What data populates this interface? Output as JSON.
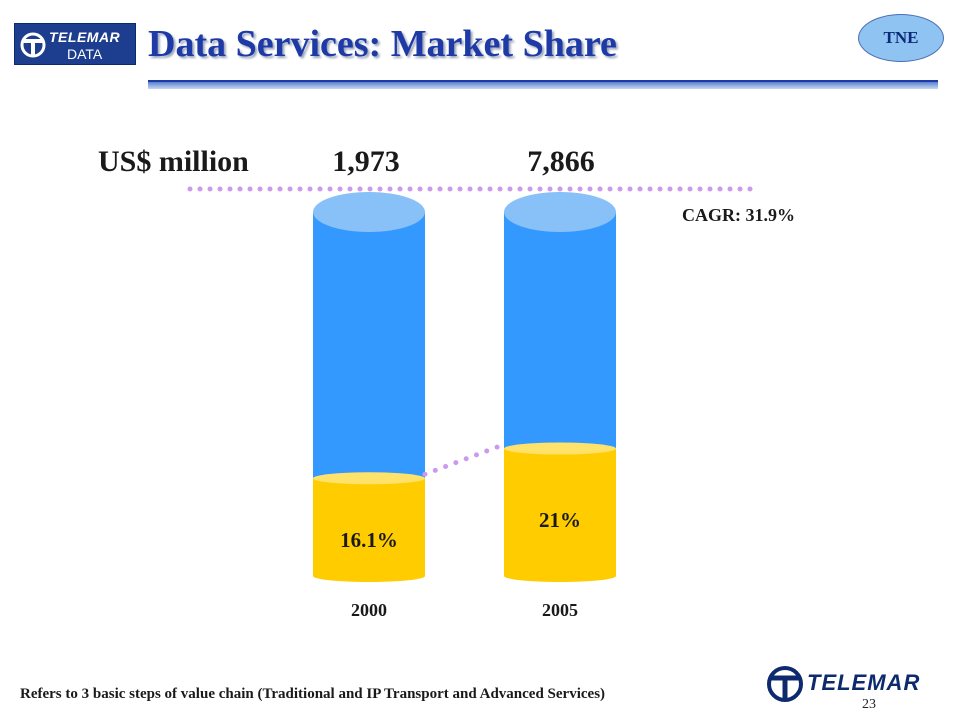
{
  "header": {
    "logo_brand": "TELEMAR",
    "logo_sub": "DATA",
    "title": "Data Services: Market Share",
    "badge": "TNE"
  },
  "chart_data": {
    "type": "bar",
    "unit_label": "US$ million",
    "categories": [
      "2000",
      "2005"
    ],
    "totals": [
      1973,
      7866
    ],
    "total_labels": [
      "1,973",
      "7,866"
    ],
    "share": [
      16.1,
      21
    ],
    "share_labels": [
      "16.1%",
      "21%"
    ],
    "annotation": "CAGR: 31.9%",
    "colors": {
      "total": "#3399ff",
      "total_top": "#88c0f8",
      "share": "#ffcc00",
      "share_top": "#ffe26a",
      "dots": "#cc99ee"
    }
  },
  "footer": {
    "note": "Refers to 3 basic steps of value chain (Traditional and IP Transport and Advanced Services)",
    "logo_brand": "TELEMAR",
    "page_number": "23"
  }
}
